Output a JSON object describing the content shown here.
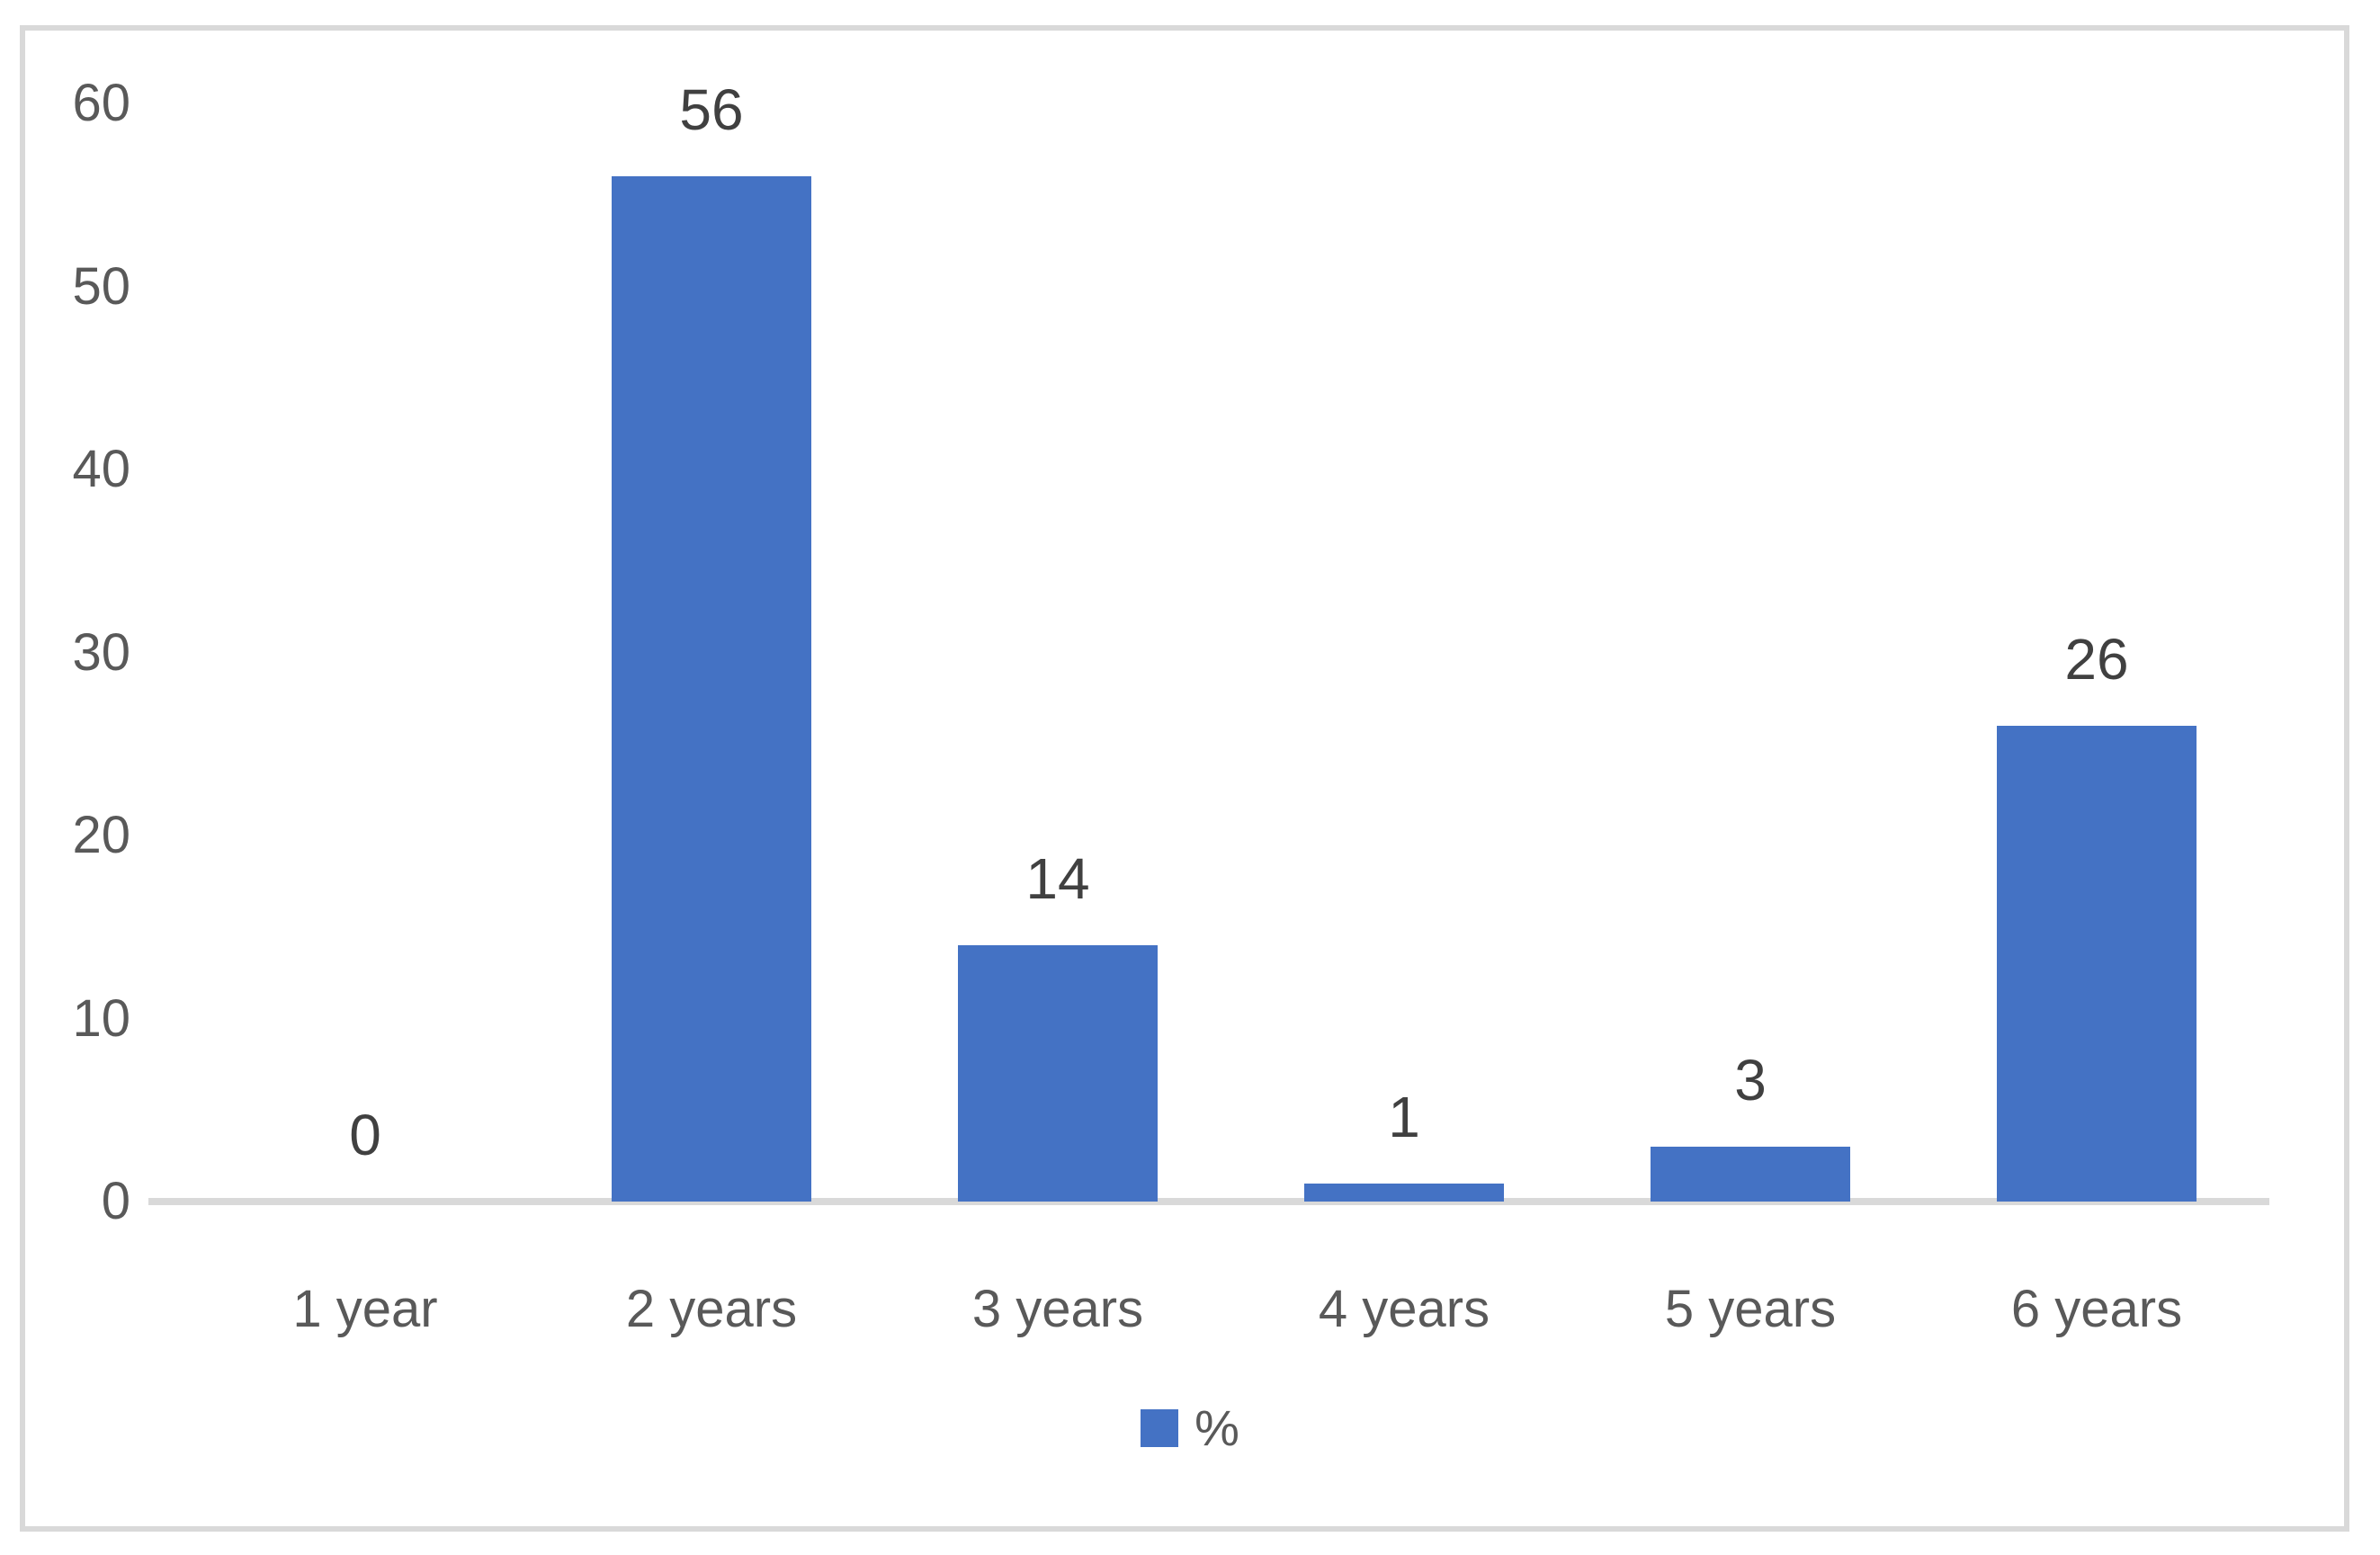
{
  "chart_data": {
    "type": "bar",
    "categories": [
      "1 year",
      "2 years",
      "3 years",
      "4 years",
      "5 years",
      "6 years"
    ],
    "values": [
      0,
      56,
      14,
      1,
      3,
      26
    ],
    "series_name": "%",
    "title": "",
    "xlabel": "",
    "ylabel": "",
    "ylim": [
      0,
      60
    ],
    "yticks": [
      0,
      10,
      20,
      30,
      40,
      50,
      60
    ],
    "grid": false,
    "data_labels_shown": true,
    "legend_position": "bottom",
    "bar_color": "#4472C4",
    "axis_text_color": "#595959",
    "data_label_color": "#404040",
    "axis_line_color": "#D9D9D9",
    "frame_color": "#D9D9D9"
  }
}
